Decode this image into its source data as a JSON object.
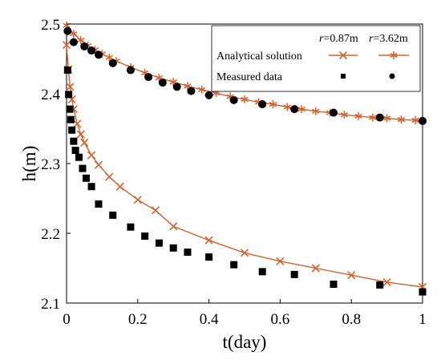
{
  "chart_data": {
    "type": "line",
    "xlabel": "t(day)",
    "ylabel": "h(m)",
    "xlim": [
      0,
      1
    ],
    "ylim": [
      2.1,
      2.5
    ],
    "xticks": [
      "0",
      "0.2",
      "0.4",
      "0.6",
      "0.8",
      "1"
    ],
    "yticks": [
      "2.1",
      "2.2",
      "2.3",
      "2.4",
      "2.5"
    ],
    "grid": false,
    "legend": {
      "placement": "top-right",
      "header": [
        {
          "var": "r",
          "text": "=0.87m"
        },
        {
          "var": "r",
          "text": "=3.62m"
        }
      ],
      "rows": [
        "Analytical solution",
        "Measured data"
      ]
    },
    "colors": {
      "analytical": "#d4622a",
      "measured": "#000000"
    },
    "series": [
      {
        "group": "r=0.87m",
        "kind": "analytical",
        "marker": "x",
        "x": [
          0,
          0.005,
          0.01,
          0.015,
          0.02,
          0.03,
          0.04,
          0.05,
          0.07,
          0.09,
          0.12,
          0.15,
          0.2,
          0.25,
          0.3,
          0.4,
          0.5,
          0.6,
          0.7,
          0.8,
          0.9,
          1.0
        ],
        "y": [
          2.47,
          2.435,
          2.41,
          2.392,
          2.378,
          2.357,
          2.342,
          2.33,
          2.312,
          2.298,
          2.281,
          2.267,
          2.248,
          2.233,
          2.21,
          2.19,
          2.172,
          2.16,
          2.15,
          2.14,
          2.13,
          2.123
        ]
      },
      {
        "group": "r=0.87m",
        "kind": "measured",
        "marker": "square",
        "x": [
          0.003,
          0.006,
          0.009,
          0.012,
          0.015,
          0.02,
          0.025,
          0.035,
          0.045,
          0.055,
          0.07,
          0.09,
          0.13,
          0.18,
          0.22,
          0.26,
          0.3,
          0.34,
          0.4,
          0.47,
          0.55,
          0.64,
          0.75,
          0.88,
          1.0
        ],
        "y": [
          2.434,
          2.399,
          2.378,
          2.363,
          2.348,
          2.332,
          2.319,
          2.309,
          2.293,
          2.279,
          2.267,
          2.242,
          2.226,
          2.209,
          2.196,
          2.186,
          2.179,
          2.173,
          2.166,
          2.155,
          2.145,
          2.141,
          2.127,
          2.126,
          2.116
        ]
      },
      {
        "group": "r=3.62m",
        "kind": "analytical",
        "marker": "asterisk",
        "x": [
          0,
          0.02,
          0.04,
          0.06,
          0.08,
          0.1,
          0.12,
          0.14,
          0.18,
          0.22,
          0.26,
          0.3,
          0.34,
          0.38,
          0.42,
          0.46,
          0.5,
          0.54,
          0.58,
          0.62,
          0.66,
          0.7,
          0.74,
          0.78,
          0.82,
          0.86,
          0.9,
          0.94,
          0.98,
          1.0
        ],
        "y": [
          2.498,
          2.486,
          2.477,
          2.469,
          2.463,
          2.457,
          2.452,
          2.447,
          2.438,
          2.43,
          2.423,
          2.417,
          2.411,
          2.406,
          2.401,
          2.396,
          2.392,
          2.388,
          2.385,
          2.381,
          2.378,
          2.375,
          2.373,
          2.37,
          2.368,
          2.366,
          2.365,
          2.363,
          2.362,
          2.361
        ]
      },
      {
        "group": "r=3.62m",
        "kind": "measured",
        "marker": "circle",
        "x": [
          0.003,
          0.02,
          0.05,
          0.07,
          0.09,
          0.13,
          0.18,
          0.23,
          0.27,
          0.31,
          0.35,
          0.4,
          0.47,
          0.55,
          0.64,
          0.75,
          0.88,
          1.0
        ],
        "y": [
          2.49,
          2.474,
          2.468,
          2.462,
          2.456,
          2.444,
          2.434,
          2.424,
          2.416,
          2.41,
          2.404,
          2.398,
          2.391,
          2.385,
          2.378,
          2.373,
          2.366,
          2.361
        ]
      }
    ]
  }
}
